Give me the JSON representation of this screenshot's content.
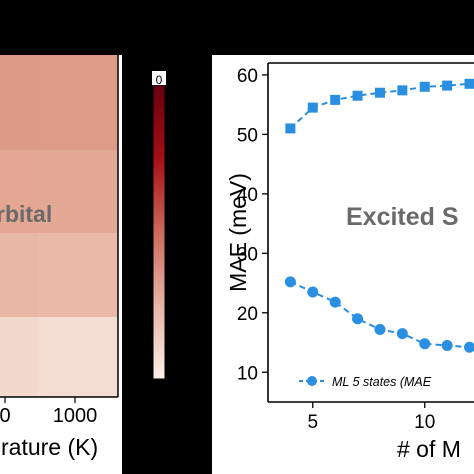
{
  "chart_data": [
    {
      "type": "heatmap",
      "overlay_label": "rbital",
      "x_tick_labels": [
        "0",
        "1000"
      ],
      "xlabel": "rature (K)",
      "cells": [
        {
          "row": 0,
          "col": 0,
          "color": "#dd9a86"
        },
        {
          "row": 0,
          "col": 1,
          "color": "#de9b87"
        },
        {
          "row": 1,
          "col": 0,
          "color": "#e3a793"
        },
        {
          "row": 1,
          "col": 1,
          "color": "#e4a995"
        },
        {
          "row": 2,
          "col": 0,
          "color": "#e9b7a6"
        },
        {
          "row": 2,
          "col": 1,
          "color": "#eab9a8"
        },
        {
          "row": 3,
          "col": 0,
          "color": "#f2d8cd"
        },
        {
          "row": 3,
          "col": 1,
          "color": "#f4ddd2"
        }
      ],
      "label_color": "#6a6a6a"
    },
    {
      "type": "colorbar",
      "colors": [
        "#67000d",
        "#a50f15",
        "#cb6a5a",
        "#e8b5a6",
        "#fbeee7"
      ],
      "top_tick_label": "0"
    },
    {
      "type": "line",
      "overlay_label": "Excited S",
      "xlabel": "# of M",
      "ylabel": "MAE (meV)",
      "xlim": [
        3,
        12.2
      ],
      "ylim": [
        5,
        62
      ],
      "x_ticks": [
        5,
        10
      ],
      "y_ticks": [
        10,
        20,
        30,
        40,
        50,
        60
      ],
      "color": "#2a8fe0",
      "series": [
        {
          "marker": "square",
          "x": [
            4,
            5,
            6,
            7,
            8,
            9,
            10,
            11,
            12
          ],
          "y": [
            51,
            54.5,
            55.8,
            56.5,
            57,
            57.4,
            58,
            58.2,
            58.5
          ]
        },
        {
          "marker": "circle",
          "name": "ML 5 states (MAE",
          "x": [
            4,
            5,
            6,
            7,
            8,
            9,
            10,
            11,
            12
          ],
          "y": [
            25.2,
            23.5,
            21.8,
            19,
            17.2,
            16.5,
            14.8,
            14.5,
            14.2
          ]
        }
      ]
    }
  ]
}
